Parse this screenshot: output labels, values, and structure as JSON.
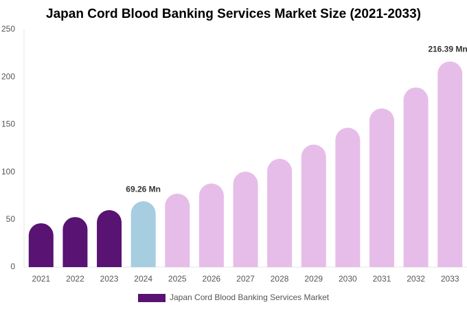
{
  "chart_data": {
    "type": "bar",
    "title": "Japan Cord Blood Banking Services Market Size (2021-2033)",
    "categories": [
      "2021",
      "2022",
      "2023",
      "2024",
      "2025",
      "2026",
      "2027",
      "2028",
      "2029",
      "2030",
      "2031",
      "2032",
      "2033"
    ],
    "series": [
      {
        "name": "Japan Cord Blood Banking Services Market",
        "color": "#581373",
        "values": [
          46.2,
          52.7,
          60,
          69.26,
          77.3,
          88,
          100.4,
          114,
          129,
          146.7,
          167,
          189,
          216.39
        ],
        "value_labels": [
          null,
          null,
          null,
          "69.26 Mn",
          null,
          null,
          null,
          null,
          null,
          null,
          null,
          null,
          "216.39 Mn"
        ],
        "colors": [
          "#581373",
          "#581373",
          "#581373",
          "#a6cde0",
          "#e6bde8",
          "#e6bde8",
          "#e6bde8",
          "#e6bde8",
          "#e6bde8",
          "#e6bde8",
          "#e6bde8",
          "#e6bde8",
          "#e6bde8"
        ]
      }
    ],
    "ylim": [
      0,
      250
    ],
    "yticks": [
      0,
      50,
      100,
      150,
      200,
      250
    ],
    "grid": false
  }
}
